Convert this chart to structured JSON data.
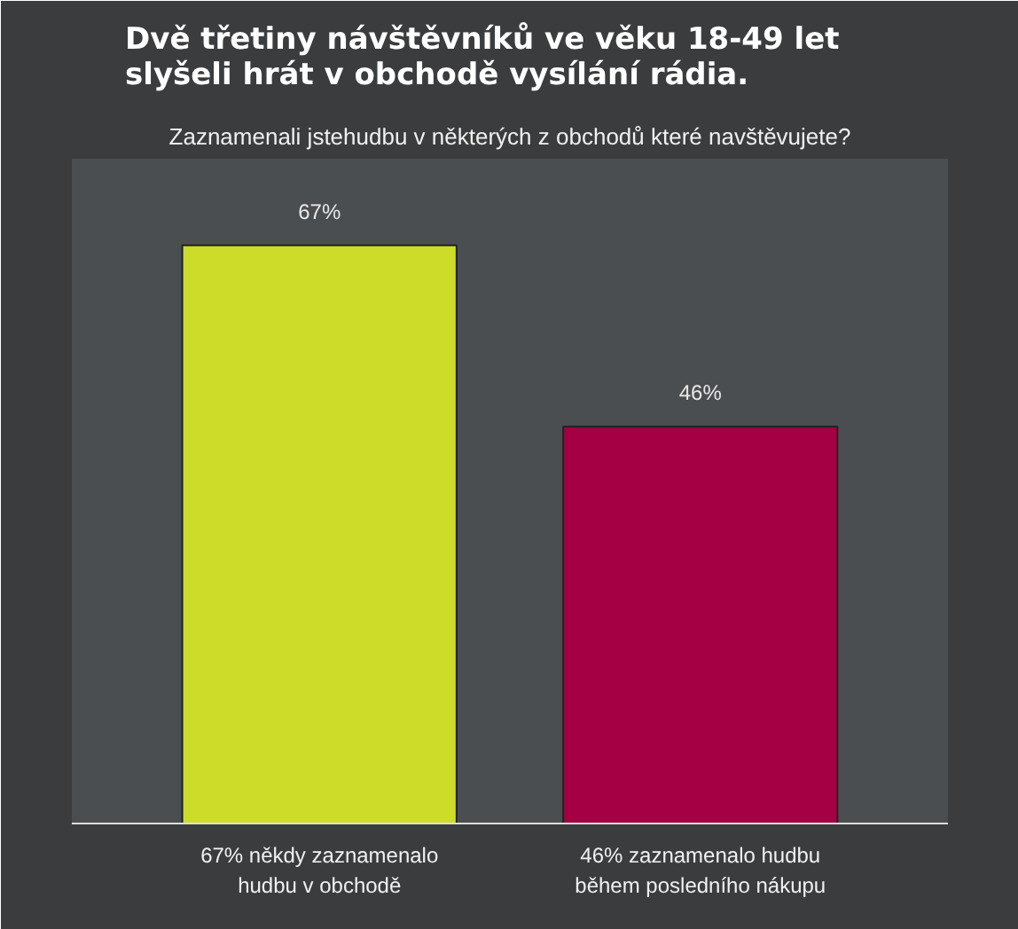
{
  "chart_data": {
    "type": "bar",
    "title": "Dvě třetiny návštěvníků ve věku 18-49 let\nslyšeli hrát v obchodě vysílání rádia.",
    "subtitle": "Zaznamenali jstehudbu v některých z obchodů které navštěvujete?",
    "categories": [
      "67% někdy zaznamenalo\nhudbu v obchodě",
      "46% zaznamenalo hudbu\nběhem posledního nákupu"
    ],
    "values": [
      67,
      46
    ],
    "colors": [
      "#cddc29",
      "#a50044"
    ],
    "value_labels": [
      "67%",
      "46%"
    ],
    "grid": false
  }
}
